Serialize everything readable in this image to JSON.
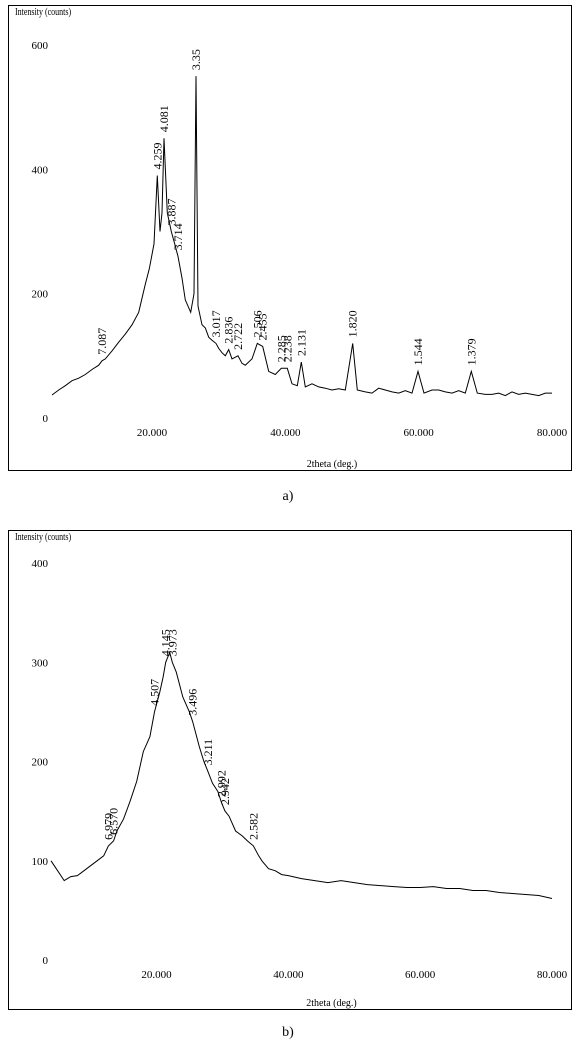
{
  "chart_data": [
    {
      "type": "line",
      "ylabel": "Intensity (counts)",
      "xlabel": "2theta (deg.)",
      "caption": "a)",
      "xlim": [
        5,
        80
      ],
      "ylim": [
        0,
        600
      ],
      "xticks": [
        {
          "value": 20,
          "label": "20.000"
        },
        {
          "value": 40,
          "label": "40.000"
        },
        {
          "value": 60,
          "label": "60.000"
        },
        {
          "value": 80,
          "label": "80.000"
        }
      ],
      "yticks": [
        0,
        200,
        400,
        600
      ],
      "series": [
        {
          "color": "#000000",
          "x": [
            5,
            6,
            7,
            8,
            9,
            10,
            11,
            12,
            12.5,
            13,
            14,
            15,
            16,
            17,
            18,
            19,
            19.6,
            20.3,
            20.8,
            21.2,
            21.5,
            21.8,
            22.3,
            22.9,
            23.4,
            23.9,
            24.5,
            25,
            25.8,
            26.3,
            26.6,
            26.9,
            27.5,
            28,
            28.5,
            29,
            29.6,
            30,
            30.5,
            31,
            31.5,
            32,
            32.9,
            33.5,
            34,
            35,
            35.8,
            36.6,
            37.5,
            38.5,
            39.4,
            40.3,
            41,
            41.8,
            42.4,
            43,
            44,
            45,
            46,
            47,
            48,
            49,
            50.1,
            50.8,
            52,
            53,
            54,
            55,
            56,
            57,
            58,
            59,
            59.9,
            60.8,
            62,
            63,
            64,
            65,
            66,
            67,
            67.9,
            68.8,
            70,
            71,
            72,
            73,
            74,
            75,
            76,
            77,
            78,
            79,
            80
          ],
          "values": [
            37,
            45,
            52,
            60,
            64,
            70,
            78,
            85,
            92,
            95,
            108,
            122,
            135,
            150,
            170,
            215,
            240,
            280,
            390,
            300,
            330,
            450,
            330,
            300,
            280,
            260,
            225,
            190,
            170,
            200,
            550,
            180,
            150,
            145,
            130,
            125,
            120,
            112,
            105,
            100,
            110,
            95,
            100,
            88,
            85,
            95,
            120,
            115,
            75,
            70,
            80,
            80,
            55,
            52,
            90,
            50,
            55,
            50,
            48,
            45,
            47,
            45,
            120,
            45,
            42,
            40,
            48,
            45,
            42,
            40,
            44,
            40,
            75,
            40,
            45,
            45,
            42,
            40,
            44,
            40,
            75,
            40,
            38,
            38,
            40,
            36,
            42,
            38,
            40,
            38,
            36,
            40,
            40
          ]
        }
      ],
      "peaks": [
        {
          "x": 12.5,
          "label": "7.087"
        },
        {
          "x": 20.8,
          "label": "4.259"
        },
        {
          "x": 21.8,
          "label": "4.081"
        },
        {
          "x": 22.9,
          "label": "3.887"
        },
        {
          "x": 23.9,
          "label": "3.714"
        },
        {
          "x": 26.6,
          "label": "3.35"
        },
        {
          "x": 29.6,
          "label": "3.017"
        },
        {
          "x": 31.5,
          "label": "2.836"
        },
        {
          "x": 32.9,
          "label": "2.722"
        },
        {
          "x": 35.8,
          "label": "2.506"
        },
        {
          "x": 36.6,
          "label": "2.455"
        },
        {
          "x": 39.4,
          "label": "2.285"
        },
        {
          "x": 40.3,
          "label": "2.238"
        },
        {
          "x": 42.4,
          "label": "2.131"
        },
        {
          "x": 50.1,
          "label": "1.820"
        },
        {
          "x": 59.9,
          "label": "1.544"
        },
        {
          "x": 67.9,
          "label": "1.379"
        }
      ]
    },
    {
      "type": "line",
      "ylabel": "Intensity (counts)",
      "xlabel": "2theta (deg.)",
      "caption": "b)",
      "xlim": [
        4,
        80
      ],
      "ylim": [
        0,
        400
      ],
      "xticks": [
        {
          "value": 20,
          "label": "20.000"
        },
        {
          "value": 40,
          "label": "40.000"
        },
        {
          "value": 60,
          "label": "60.000"
        },
        {
          "value": 80,
          "label": "80.000"
        }
      ],
      "yticks": [
        0,
        100,
        200,
        300,
        400
      ],
      "series": [
        {
          "color": "#000000",
          "x": [
            4,
            5,
            6,
            7,
            8,
            9,
            10,
            11,
            12,
            12.7,
            13.5,
            14,
            15,
            16,
            17,
            18,
            19,
            19.7,
            20.5,
            21,
            21.4,
            22,
            22.4,
            23,
            24,
            25,
            25.5,
            26.5,
            27.2,
            27.8,
            28.5,
            29.3,
            29.9,
            30.4,
            31,
            32,
            33,
            33.8,
            34.7,
            35.5,
            36,
            37,
            38,
            39,
            40,
            42,
            44,
            46,
            48,
            50,
            52,
            54,
            56,
            58,
            60,
            62,
            64,
            66,
            68,
            70,
            72,
            74,
            76,
            78,
            80
          ],
          "values": [
            100,
            90,
            80,
            84,
            85,
            90,
            95,
            100,
            105,
            115,
            120,
            130,
            142,
            160,
            180,
            210,
            225,
            250,
            270,
            285,
            300,
            310,
            300,
            290,
            265,
            250,
            240,
            215,
            200,
            190,
            178,
            170,
            158,
            150,
            145,
            130,
            125,
            120,
            115,
            105,
            100,
            92,
            90,
            86,
            85,
            82,
            80,
            78,
            80,
            78,
            76,
            75,
            74,
            73,
            73,
            74,
            72,
            72,
            70,
            70,
            68,
            67,
            66,
            65,
            62
          ]
        }
      ],
      "peaks": [
        {
          "x": 12.7,
          "label": "6.979"
        },
        {
          "x": 13.5,
          "label": "6.570"
        },
        {
          "x": 19.7,
          "label": "4.507"
        },
        {
          "x": 21.4,
          "label": "4.145"
        },
        {
          "x": 22.4,
          "label": "3.973"
        },
        {
          "x": 25.5,
          "label": "3.496"
        },
        {
          "x": 27.8,
          "label": "3.211"
        },
        {
          "x": 29.9,
          "label": "2.992"
        },
        {
          "x": 30.4,
          "label": "2.942"
        },
        {
          "x": 34.7,
          "label": "2.582"
        }
      ]
    }
  ]
}
